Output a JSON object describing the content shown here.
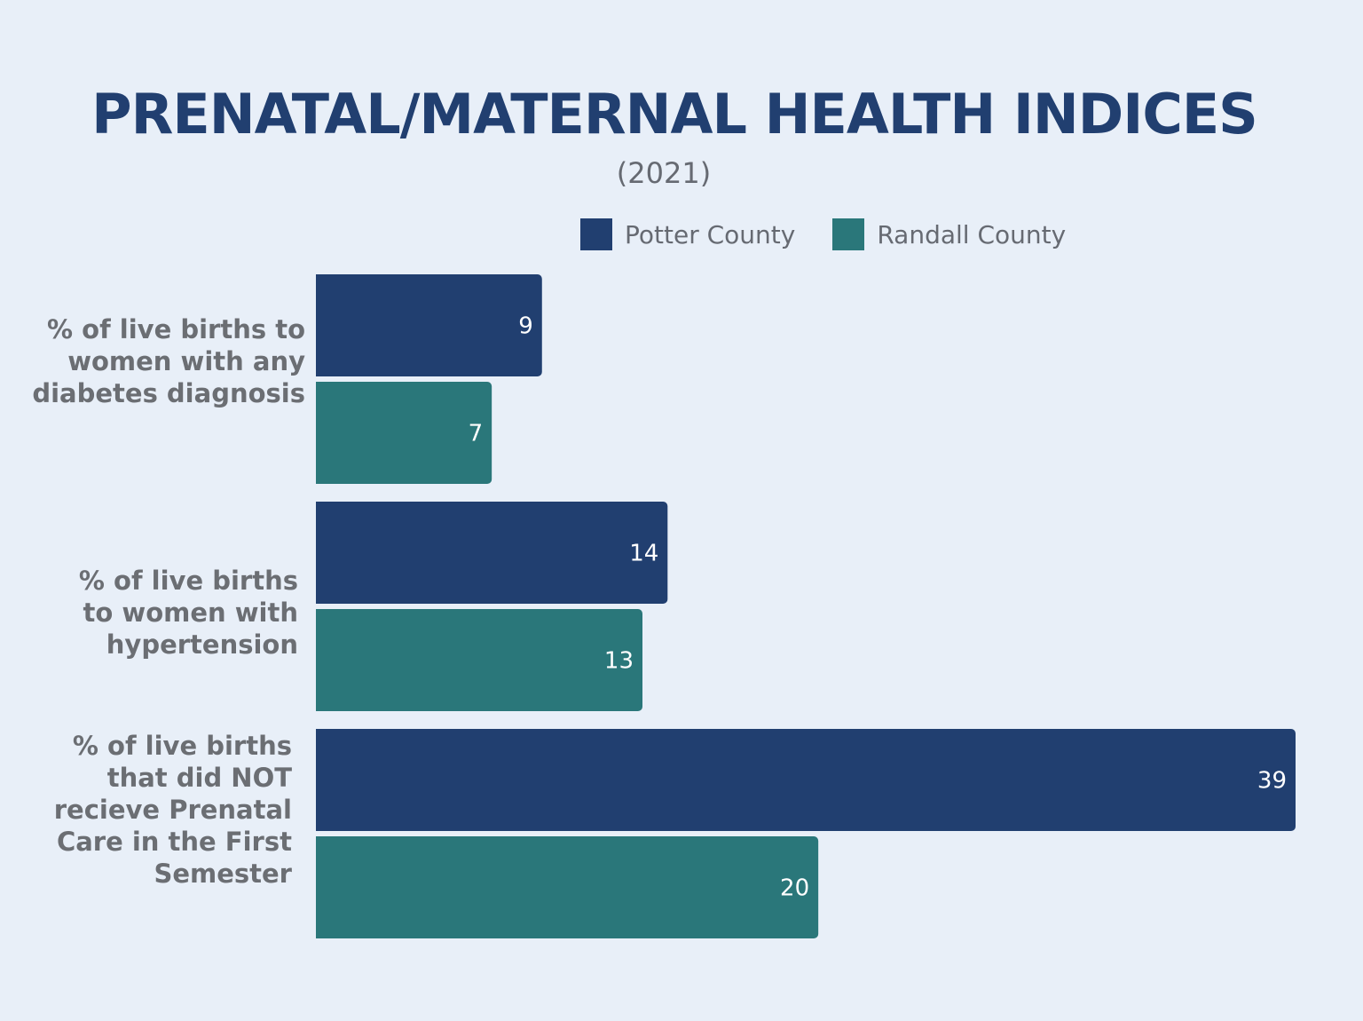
{
  "chart_data": {
    "type": "bar",
    "orientation": "horizontal",
    "title": "PRENATAL/MATERNAL HEALTH INDICES",
    "subtitle": "(2021)",
    "categories": [
      "% of live births to\nwomen with any\ndiabetes diagnosis",
      "% of live births\nto women with\nhypertension",
      "% of live births\nthat did NOT\nrecieve Prenatal\nCare in the First\nSemester"
    ],
    "series": [
      {
        "name": "Potter County",
        "color": "#213f70",
        "values": [
          9,
          14,
          39
        ]
      },
      {
        "name": "Randall County",
        "color": "#2a777a",
        "values": [
          7,
          13,
          20
        ]
      }
    ],
    "xlim": [
      0,
      39
    ],
    "legend_position": "top",
    "grid": false
  }
}
